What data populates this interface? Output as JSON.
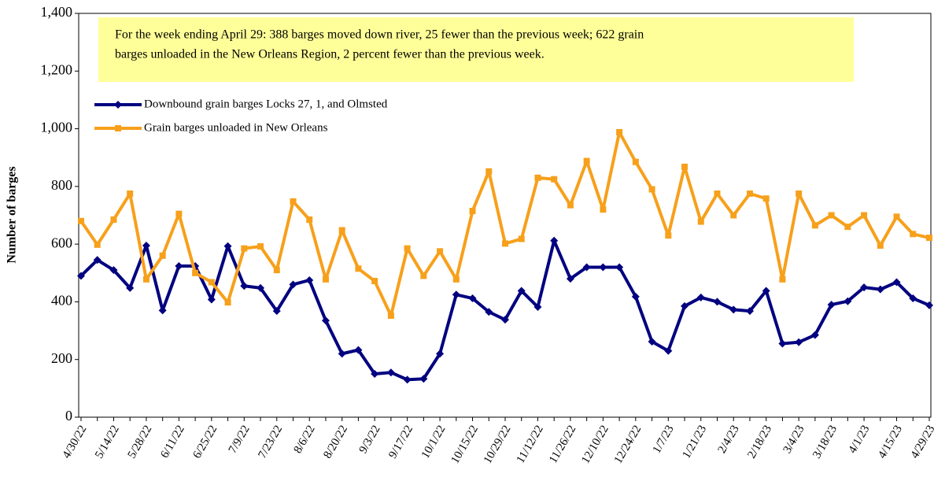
{
  "chart_data": {
    "type": "line",
    "annotation": [
      "For the week ending April 29: 388  barges moved down river,  25 fewer than the previous week;  622 grain",
      "barges unloaded in the New Orleans Region,  2 percent fewer than the previous week."
    ],
    "y_label": "Number  of  barges",
    "categories": [
      "4/30/22",
      null,
      "5/14/22",
      null,
      "5/28/22",
      null,
      "6/11/22",
      null,
      "6/25/22",
      null,
      "7/9/22",
      null,
      "7/23/22",
      null,
      "8/6/22",
      null,
      "8/20/22",
      null,
      "9/3/22",
      null,
      "9/17/22",
      null,
      "10/1/22",
      null,
      "10/15/22",
      null,
      "10/29/22",
      null,
      "11/12/22",
      null,
      "11/26/22",
      null,
      "12/10/22",
      null,
      "12/24/22",
      null,
      "1/7/23",
      null,
      "1/21/23",
      null,
      "2/4/23",
      null,
      "2/18/23",
      null,
      "3/4/23",
      null,
      "3/18/23",
      null,
      "4/1/23",
      null,
      "4/15/23",
      null,
      "4/29/23"
    ],
    "series": [
      {
        "name": "Downbound grain barges Locks 27, 1, and Olmsted",
        "color": "#000080",
        "marker": "diamond",
        "values": [
          490,
          545,
          510,
          448,
          595,
          370,
          524,
          524,
          408,
          593,
          455,
          448,
          368,
          460,
          475,
          335,
          220,
          233,
          150,
          155,
          130,
          133,
          220,
          425,
          412,
          365,
          338,
          438,
          382,
          612,
          480,
          520,
          520,
          520,
          418,
          262,
          230,
          385,
          415,
          400,
          373,
          368,
          438,
          255,
          260,
          285,
          390,
          402,
          450,
          443,
          468,
          412,
          388
        ]
      },
      {
        "name": "Grain barges unloaded in New Orleans",
        "color": "#F7A01B",
        "marker": "square",
        "values": [
          680,
          598,
          685,
          775,
          478,
          560,
          705,
          500,
          468,
          398,
          585,
          592,
          510,
          748,
          685,
          478,
          648,
          515,
          472,
          352,
          585,
          490,
          575,
          478,
          715,
          852,
          602,
          618,
          830,
          825,
          735,
          888,
          720,
          988,
          885,
          790,
          630,
          868,
          678,
          775,
          700,
          775,
          758,
          478,
          775,
          665,
          700,
          660,
          700,
          595,
          695,
          635,
          622
        ]
      }
    ],
    "ylim": [
      0,
      1400
    ],
    "yticks": [
      0,
      200,
      400,
      600,
      800,
      {
        "value": 1000,
        "label": "1,000"
      },
      {
        "value": 1200,
        "label": "1,200"
      },
      {
        "value": 1400,
        "label": "1,400"
      }
    ],
    "legend": "upper-left"
  }
}
